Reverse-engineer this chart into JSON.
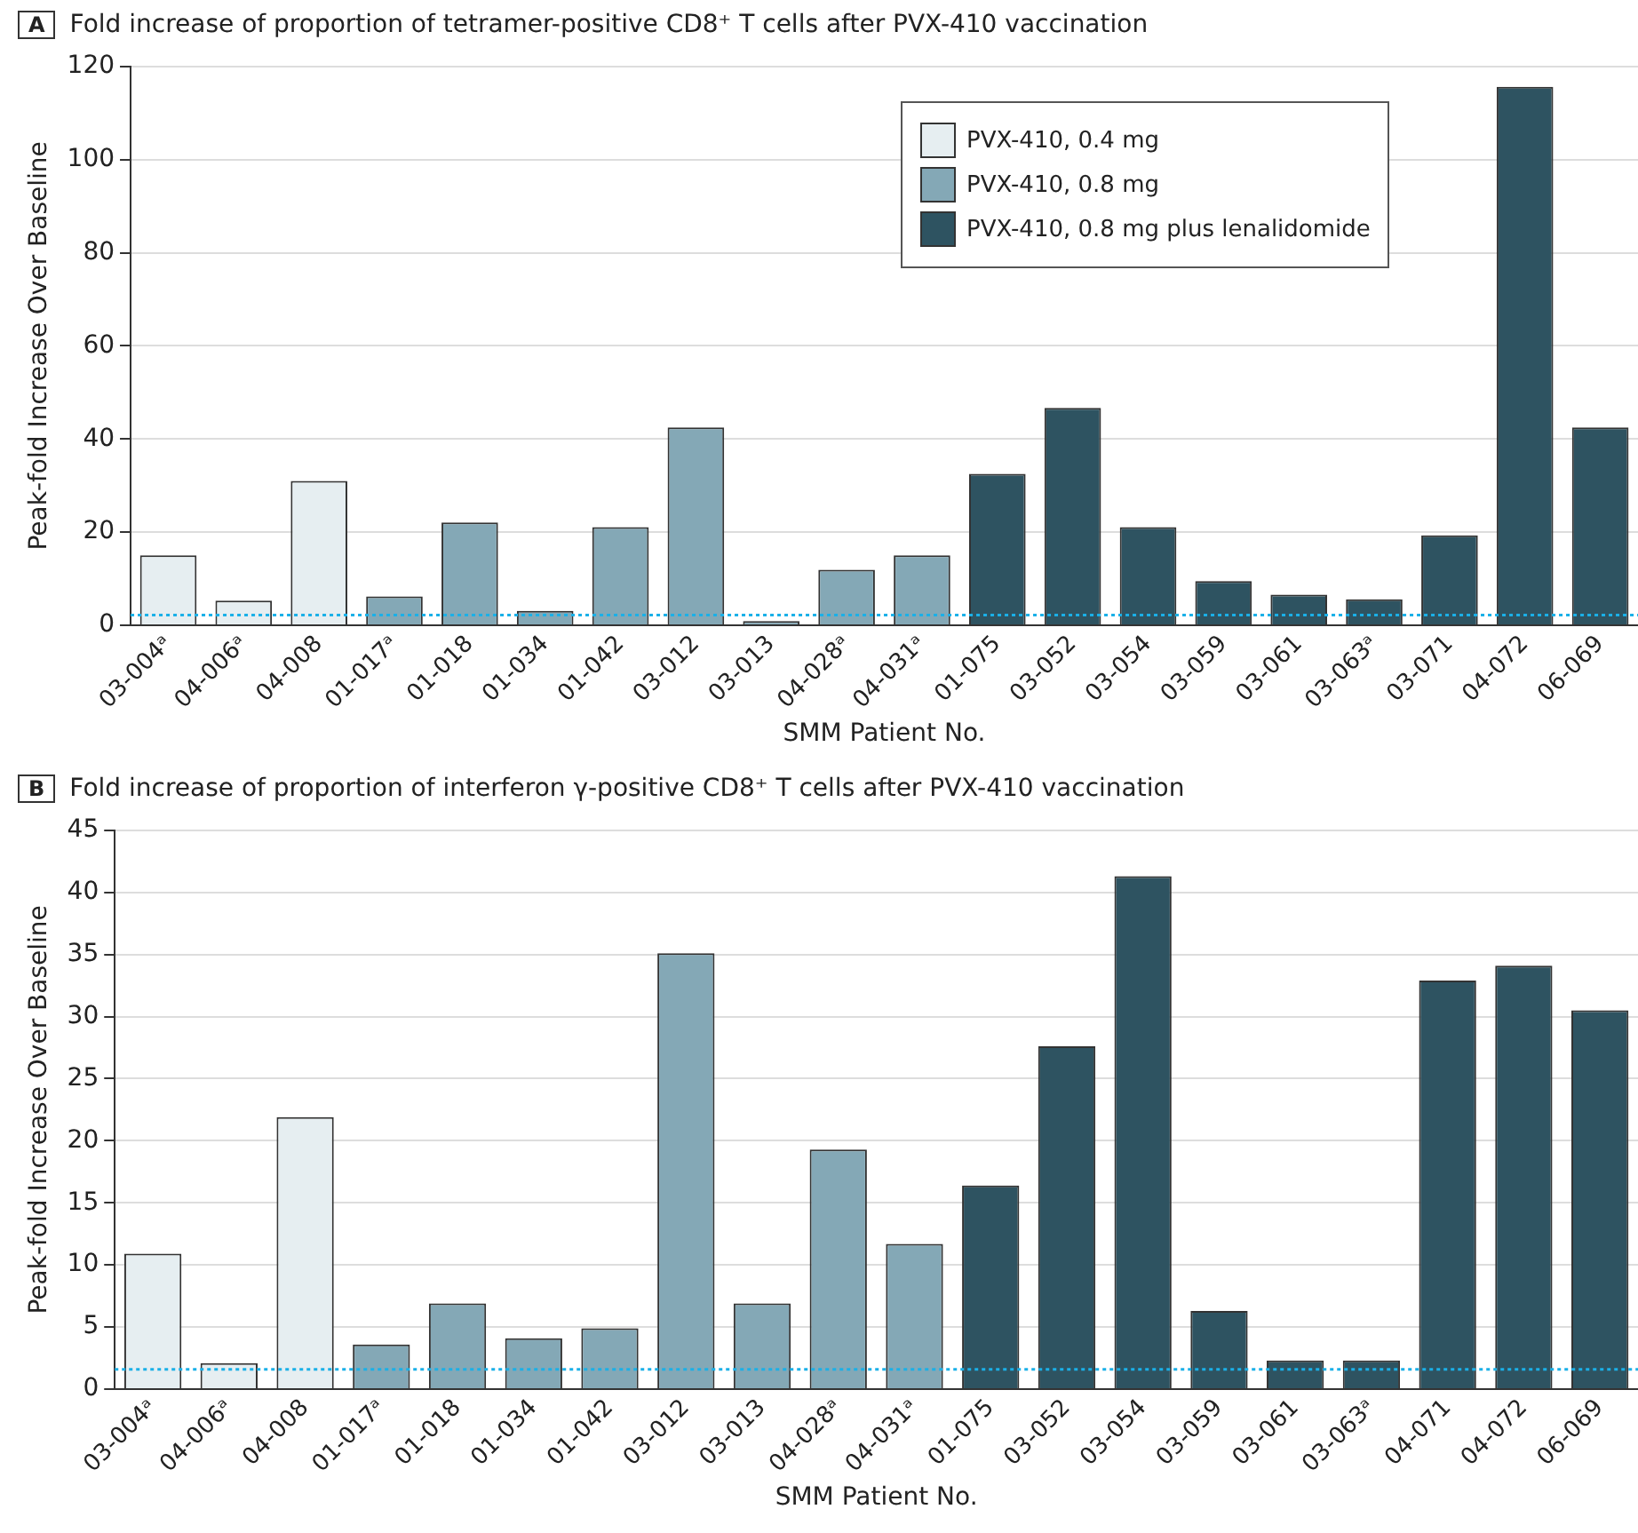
{
  "chart_data": [
    {
      "type": "bar",
      "title": "Fold increase of proportion of tetramer-positive CD8⁺ T cells after PVX-410 vaccination",
      "annotations": [
        "A"
      ],
      "xlabel": "SMM Patient No.",
      "ylabel": "Peak-fold Increase Over Baseline",
      "categories": [
        "03-004ᵃ",
        "04-006ᵃ",
        "04-008",
        "01-017ᵃ",
        "01-018",
        "01-034",
        "01-042",
        "03-012",
        "03-013",
        "04-028ᵃ",
        "04-031ᵃ",
        "01-075",
        "03-052",
        "03-054",
        "03-059",
        "03-061",
        "03-063ᵃ",
        "03-071",
        "04-072",
        "06-069"
      ],
      "series": [
        {
          "name": "PVX-410, 0.4 mg",
          "color": "#e6eef1",
          "values": [
            15,
            5.3,
            31,
            null,
            null,
            null,
            null,
            null,
            null,
            null,
            null,
            null,
            null,
            null,
            null,
            null,
            null,
            null,
            null,
            null
          ]
        },
        {
          "name": "PVX-410, 0.8 mg",
          "color": "#84a8b6",
          "values": [
            null,
            null,
            null,
            6.2,
            22.1,
            3.1,
            21.1,
            42.5,
            0.9,
            11.9,
            15,
            null,
            null,
            null,
            null,
            null,
            null,
            null,
            null,
            null
          ]
        },
        {
          "name": "PVX-410, 0.8 mg plus lenalidomide",
          "color": "#2e5361",
          "values": [
            null,
            null,
            null,
            null,
            null,
            null,
            null,
            null,
            null,
            null,
            null,
            32.5,
            46.7,
            21.1,
            9.5,
            6.6,
            5.6,
            19.3,
            115.6,
            42.5
          ]
        }
      ],
      "ylim": [
        0,
        120
      ],
      "yticks": [
        0,
        20,
        40,
        60,
        80,
        100,
        120
      ],
      "grid": "y",
      "legend": "top right",
      "ref_lines": [
        {
          "axis": "y",
          "value": 2.2,
          "color": "#1ab0e8",
          "line_style": "dotted"
        }
      ]
    },
    {
      "type": "bar",
      "title": "Fold increase of proportion of interferon γ-positive CD8⁺ T cells after PVX-410 vaccination",
      "annotations": [
        "B"
      ],
      "xlabel": "SMM Patient No.",
      "ylabel": "Peak-fold Increase Over Baseline",
      "categories": [
        "03-004ᵃ",
        "04-006ᵃ",
        "04-008",
        "01-017ᵃ",
        "01-018",
        "01-034",
        "01-042",
        "03-012",
        "03-013",
        "04-028ᵃ",
        "04-031ᵃ",
        "01-075",
        "03-052",
        "03-054",
        "03-059",
        "03-061",
        "03-063ᵃ",
        "04-071",
        "04-072",
        "06-069"
      ],
      "series": [
        {
          "color": "#e6eef1",
          "values": [
            10.9,
            2.1,
            21.9,
            null,
            null,
            null,
            null,
            null,
            null,
            null,
            null,
            null,
            null,
            null,
            null,
            null,
            null,
            null,
            null,
            null
          ]
        },
        {
          "color": "#84a8b6",
          "values": [
            null,
            null,
            null,
            3.6,
            6.9,
            4.1,
            4.9,
            35.1,
            6.9,
            19.3,
            11.7,
            null,
            null,
            null,
            null,
            null,
            null,
            null,
            null,
            null
          ]
        },
        {
          "color": "#2e5361",
          "values": [
            null,
            null,
            null,
            null,
            null,
            null,
            null,
            null,
            null,
            null,
            null,
            16.4,
            27.6,
            41.3,
            6.3,
            2.3,
            2.3,
            32.9,
            34.1,
            30.5
          ]
        }
      ],
      "ylim": [
        0,
        45
      ],
      "yticks": [
        0,
        5,
        10,
        15,
        20,
        25,
        30,
        35,
        40,
        45
      ],
      "grid": "y",
      "ref_lines": [
        {
          "axis": "y",
          "value": 1.6,
          "color": "#1ab0e8",
          "line_style": "dotted"
        }
      ]
    }
  ]
}
